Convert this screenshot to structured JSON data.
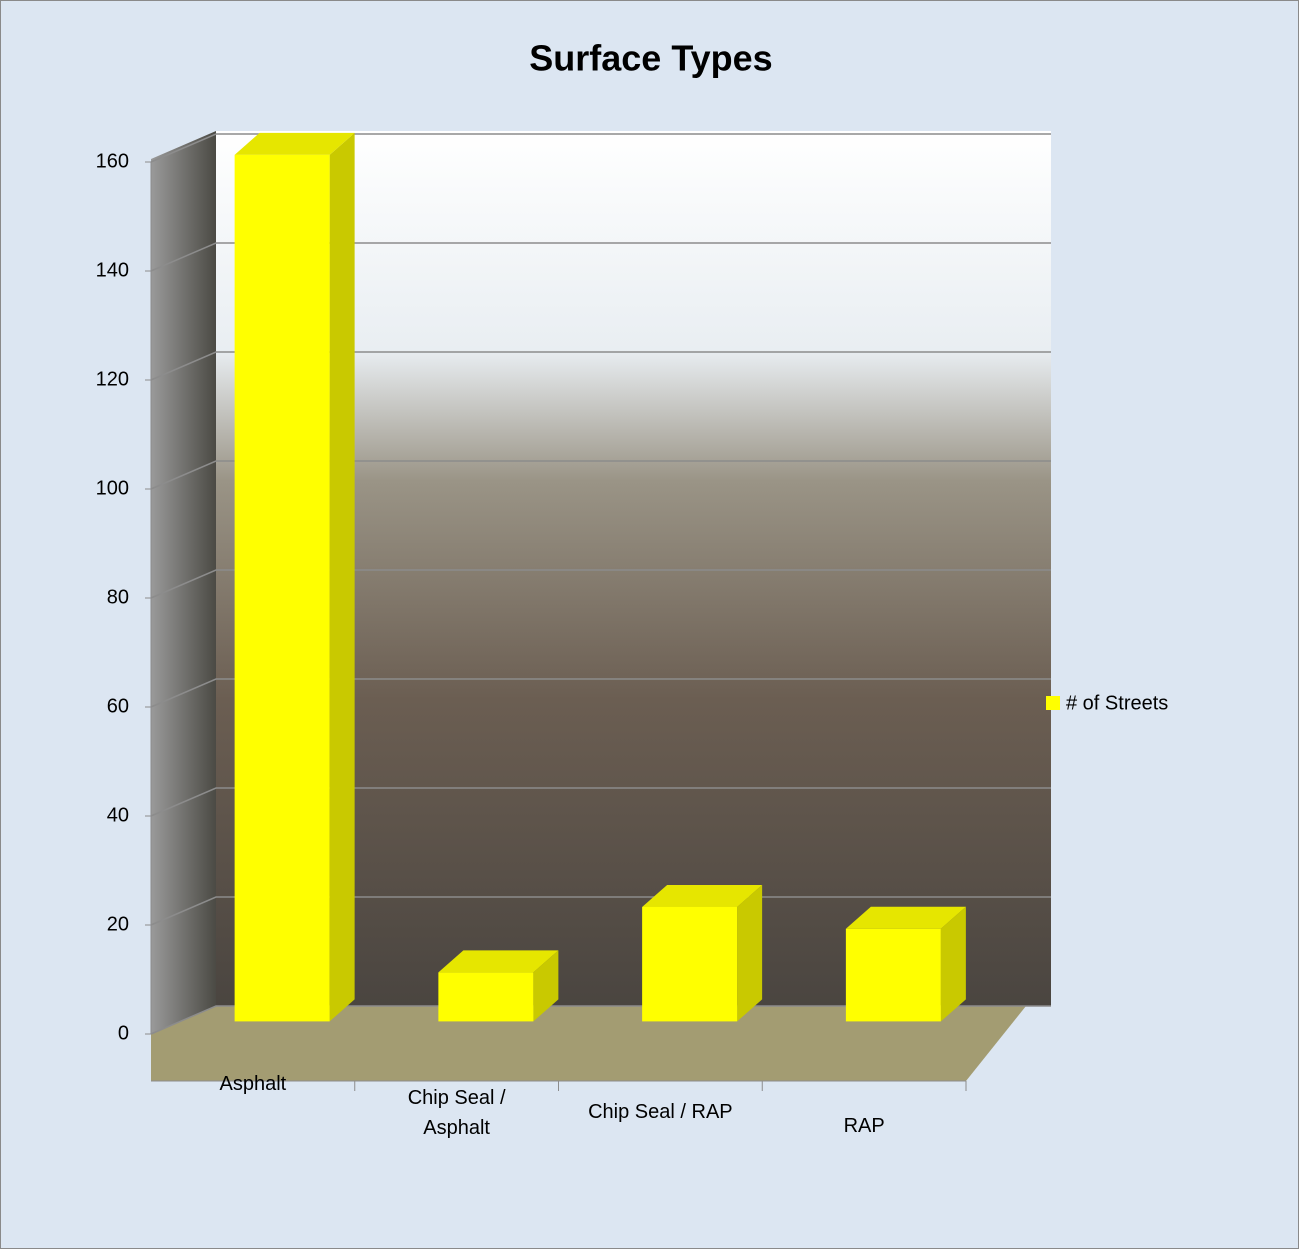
{
  "chart_data": {
    "type": "bar3d",
    "title": "Surface Types",
    "categories": [
      "Asphalt",
      "Chip Seal / Asphalt",
      "Chip Seal / RAP",
      "RAP"
    ],
    "series": [
      {
        "name": "# of Streets",
        "color": "#ffff00",
        "values": [
          159,
          9,
          21,
          17
        ]
      }
    ],
    "ylim": [
      0,
      160
    ],
    "yticks": [
      0,
      20,
      40,
      60,
      80,
      100,
      120,
      140,
      160
    ],
    "grid": true,
    "legend": "right"
  }
}
